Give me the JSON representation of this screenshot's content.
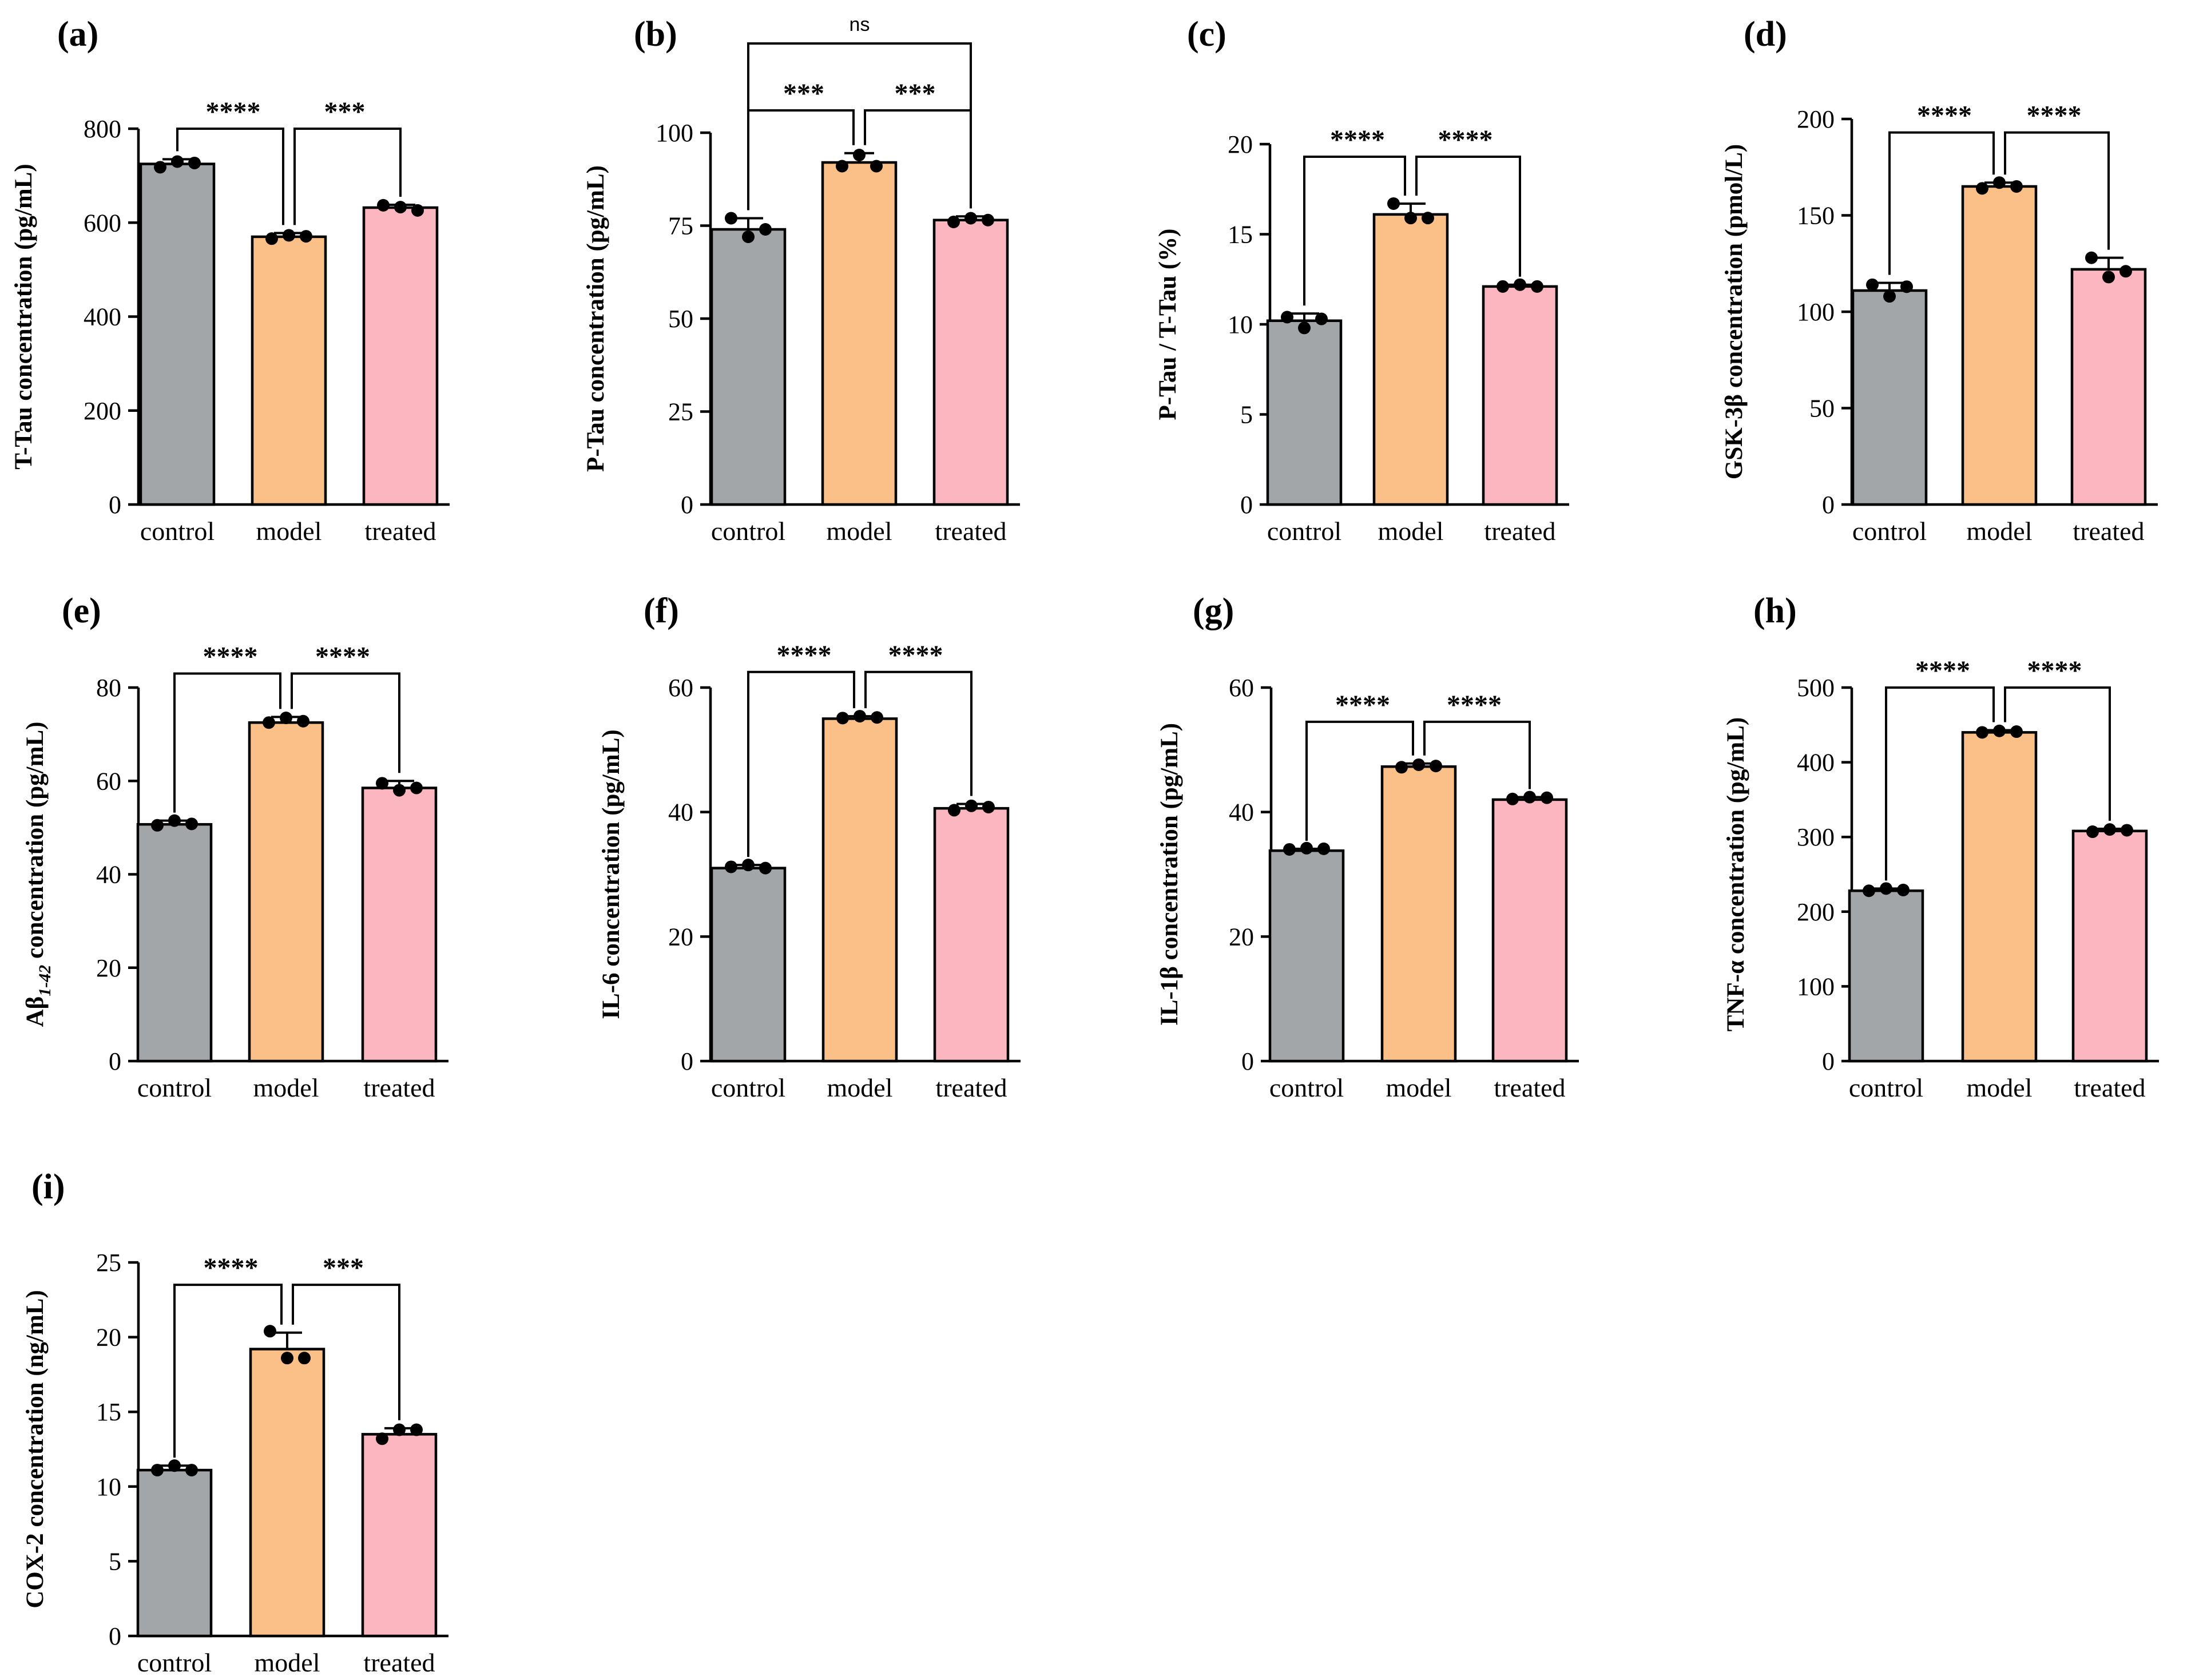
{
  "categories": [
    "control",
    "model",
    "treated"
  ],
  "colors": {
    "control": "#A3A6A9",
    "model": "#FBC088",
    "treated": "#FBB6C0"
  },
  "chart_data": [
    {
      "type": "bar",
      "panel": "(a)",
      "ylabel": "T-Tau concentration (pg/mL)",
      "ylim": [
        0,
        800
      ],
      "yticks": [
        0,
        200,
        400,
        600,
        800
      ],
      "categories": [
        "control",
        "model",
        "treated"
      ],
      "values": [
        725,
        570,
        632
      ],
      "errors": [
        10,
        8,
        6
      ],
      "points": [
        [
          718,
          730,
          727
        ],
        [
          566,
          573,
          571
        ],
        [
          637,
          633,
          626
        ]
      ],
      "comparisons": [
        {
          "from": 0,
          "to": 1,
          "label": "****",
          "level": 800
        },
        {
          "from": 1,
          "to": 2,
          "label": "***",
          "level": 800
        }
      ]
    },
    {
      "type": "bar",
      "panel": "(b)",
      "ylabel": "P-Tau concentration (pg/mL)",
      "ylim": [
        0,
        100
      ],
      "yticks": [
        0,
        25,
        50,
        75,
        100
      ],
      "categories": [
        "control",
        "model",
        "treated"
      ],
      "values": [
        74,
        92,
        76.5
      ],
      "errors": [
        3,
        2.5,
        1
      ],
      "points": [
        [
          77,
          72,
          74
        ],
        [
          91,
          94,
          91
        ],
        [
          76,
          77,
          76.5
        ]
      ],
      "comparisons": [
        {
          "from": 0,
          "to": 1,
          "label": "***",
          "level": 106
        },
        {
          "from": 1,
          "to": 2,
          "label": "***",
          "level": 106
        },
        {
          "from": 0,
          "to": 2,
          "label": "ns",
          "level": 124
        }
      ]
    },
    {
      "type": "bar",
      "panel": "(c)",
      "ylabel": "P-Tau / T-Tau (%)",
      "ylim": [
        0,
        20
      ],
      "yticks": [
        0,
        5,
        10,
        15,
        20
      ],
      "categories": [
        "control",
        "model",
        "treated"
      ],
      "values": [
        10.2,
        16.1,
        12.1
      ],
      "errors": [
        0.4,
        0.6,
        0.1
      ],
      "points": [
        [
          10.4,
          9.8,
          10.3
        ],
        [
          16.7,
          15.9,
          15.9
        ],
        [
          12.1,
          12.2,
          12.1
        ]
      ],
      "comparisons": [
        {
          "from": 0,
          "to": 1,
          "label": "****",
          "level": 19.3
        },
        {
          "from": 1,
          "to": 2,
          "label": "****",
          "level": 19.3
        }
      ]
    },
    {
      "type": "bar",
      "panel": "(d)",
      "ylabel": "GSK-3β concentration (pmol/L)",
      "ylim": [
        0,
        200
      ],
      "yticks": [
        0,
        50,
        100,
        150,
        200
      ],
      "categories": [
        "control",
        "model",
        "treated"
      ],
      "values": [
        111,
        165,
        122
      ],
      "errors": [
        4,
        2,
        6
      ],
      "points": [
        [
          114,
          108,
          113
        ],
        [
          164,
          167,
          165
        ],
        [
          128,
          118,
          121
        ]
      ],
      "comparisons": [
        {
          "from": 0,
          "to": 1,
          "label": "****",
          "level": 193
        },
        {
          "from": 1,
          "to": 2,
          "label": "****",
          "level": 193
        }
      ]
    },
    {
      "type": "bar",
      "panel": "(e)",
      "ylabel": "Aβ1-42 concentration  (pg/mL)",
      "ylabel_main": "Aβ",
      "ylabel_sub": "1-42",
      "ylabel_rest": " concentration  (pg/mL)",
      "ylim": [
        0,
        80
      ],
      "yticks": [
        0,
        20,
        40,
        60,
        80
      ],
      "categories": [
        "control",
        "model",
        "treated"
      ],
      "values": [
        50.7,
        72.5,
        58.5
      ],
      "errors": [
        0.8,
        1.2,
        1.5
      ],
      "points": [
        [
          50.5,
          51.5,
          50.8
        ],
        [
          72.5,
          73.5,
          72.8
        ],
        [
          59.5,
          58,
          58.5
        ]
      ],
      "comparisons": [
        {
          "from": 0,
          "to": 1,
          "label": "****",
          "level": 83
        },
        {
          "from": 1,
          "to": 2,
          "label": "****",
          "level": 83
        }
      ]
    },
    {
      "type": "bar",
      "panel": "(f)",
      "ylabel": "IL-6 concentration (pg/mL)",
      "ylim": [
        0,
        60
      ],
      "yticks": [
        0,
        20,
        40,
        60
      ],
      "categories": [
        "control",
        "model",
        "treated"
      ],
      "values": [
        31,
        55,
        40.6
      ],
      "errors": [
        0.5,
        0.4,
        0.7
      ],
      "points": [
        [
          31.2,
          31.5,
          31
        ],
        [
          55.1,
          55.4,
          55.2
        ],
        [
          40.3,
          41,
          40.8
        ]
      ],
      "comparisons": [
        {
          "from": 0,
          "to": 1,
          "label": "****",
          "level": 62.5
        },
        {
          "from": 1,
          "to": 2,
          "label": "****",
          "level": 62.5
        }
      ]
    },
    {
      "type": "bar",
      "panel": "(g)",
      "ylabel": "IL-1β concentration (pg/mL)",
      "ylim": [
        0,
        60
      ],
      "yticks": [
        0,
        20,
        40,
        60
      ],
      "categories": [
        "control",
        "model",
        "treated"
      ],
      "values": [
        33.8,
        47.3,
        42
      ],
      "errors": [
        0.3,
        0.5,
        0.4
      ],
      "points": [
        [
          34,
          34.2,
          34.1
        ],
        [
          47.2,
          47.6,
          47.4
        ],
        [
          42.1,
          42.4,
          42.3
        ]
      ],
      "comparisons": [
        {
          "from": 0,
          "to": 1,
          "label": "****",
          "level": 54.5
        },
        {
          "from": 1,
          "to": 2,
          "label": "****",
          "level": 54.5
        }
      ]
    },
    {
      "type": "bar",
      "panel": "(h)",
      "ylabel": "TNF-α concentration (pg/mL)",
      "ylim": [
        0,
        500
      ],
      "yticks": [
        0,
        100,
        200,
        300,
        400,
        500
      ],
      "categories": [
        "control",
        "model",
        "treated"
      ],
      "values": [
        228,
        440,
        308
      ],
      "errors": [
        3,
        3,
        3
      ],
      "points": [
        [
          228,
          231,
          229
        ],
        [
          440,
          442,
          441
        ],
        [
          307,
          310,
          309
        ]
      ],
      "comparisons": [
        {
          "from": 0,
          "to": 1,
          "label": "****",
          "level": 500
        },
        {
          "from": 1,
          "to": 2,
          "label": "****",
          "level": 500
        }
      ]
    },
    {
      "type": "bar",
      "panel": "(i)",
      "ylabel": "COX-2 concentration (ng/mL)",
      "ylim": [
        0,
        25
      ],
      "yticks": [
        0,
        5,
        10,
        15,
        20,
        25
      ],
      "categories": [
        "control",
        "model",
        "treated"
      ],
      "values": [
        11.1,
        19.2,
        13.5
      ],
      "errors": [
        0.3,
        1.1,
        0.4
      ],
      "points": [
        [
          11.1,
          11.4,
          11.1
        ],
        [
          20.4,
          18.6,
          18.6
        ],
        [
          13.2,
          13.8,
          13.8
        ]
      ],
      "comparisons": [
        {
          "from": 0,
          "to": 1,
          "label": "****",
          "level": 23.5
        },
        {
          "from": 1,
          "to": 2,
          "label": "***",
          "level": 23.5
        }
      ]
    }
  ]
}
